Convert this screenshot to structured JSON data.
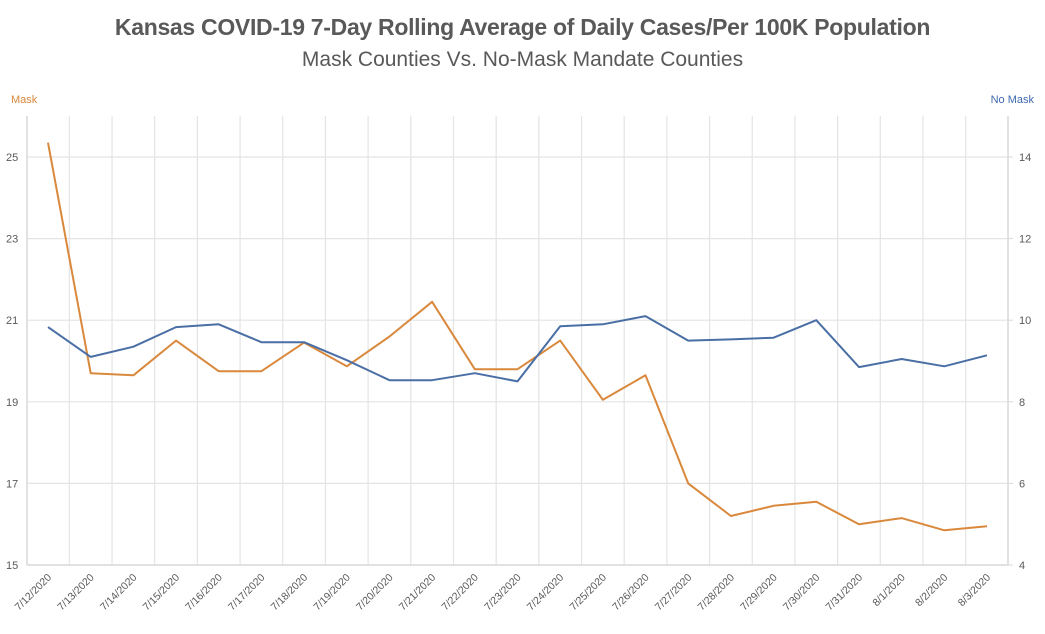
{
  "chart_data": {
    "type": "line",
    "title": "Kansas COVID-19 7-Day Rolling Average of Daily Cases/Per 100K Population",
    "subtitle": "Mask Counties Vs. No-Mask Mandate Counties",
    "xlabel": "",
    "ylabel_left": "Mask",
    "ylabel_right": "No Mask",
    "categories": [
      "7/12/2020",
      "7/13/2020",
      "7/14/2020",
      "7/15/2020",
      "7/16/2020",
      "7/17/2020",
      "7/18/2020",
      "7/19/2020",
      "7/20/2020",
      "7/21/2020",
      "7/22/2020",
      "7/23/2020",
      "7/24/2020",
      "7/25/2020",
      "7/26/2020",
      "7/27/2020",
      "7/28/2020",
      "7/29/2020",
      "7/30/2020",
      "7/31/2020",
      "8/1/2020",
      "8/2/2020",
      "8/3/2020"
    ],
    "y_left": {
      "range": [
        15,
        26
      ],
      "ticks": [
        15,
        17,
        19,
        21,
        23,
        25
      ]
    },
    "y_right": {
      "range": [
        4,
        15
      ],
      "ticks": [
        4,
        6,
        8,
        10,
        12,
        14
      ]
    },
    "grid": true,
    "legend": "axis-titles top-left (Mask) and top-right (No Mask)",
    "series": [
      {
        "name": "Mask",
        "axis": "left",
        "color": "#d9883c",
        "values": [
          25.35,
          19.7,
          19.65,
          20.5,
          19.75,
          19.75,
          20.45,
          19.87,
          20.6,
          21.45,
          19.8,
          19.8,
          20.5,
          19.05,
          19.65,
          17.0,
          16.2,
          16.45,
          16.55,
          16.0,
          16.15,
          15.85,
          15.95
        ]
      },
      {
        "name": "No Mask",
        "axis": "right",
        "color": "#4a6fa5",
        "values": [
          9.83,
          9.1,
          9.35,
          9.83,
          9.9,
          9.46,
          9.46,
          9.02,
          8.53,
          8.53,
          8.7,
          8.5,
          9.85,
          9.9,
          10.1,
          9.5,
          9.53,
          9.57,
          10.0,
          8.85,
          9.05,
          8.87,
          9.14
        ]
      }
    ]
  }
}
